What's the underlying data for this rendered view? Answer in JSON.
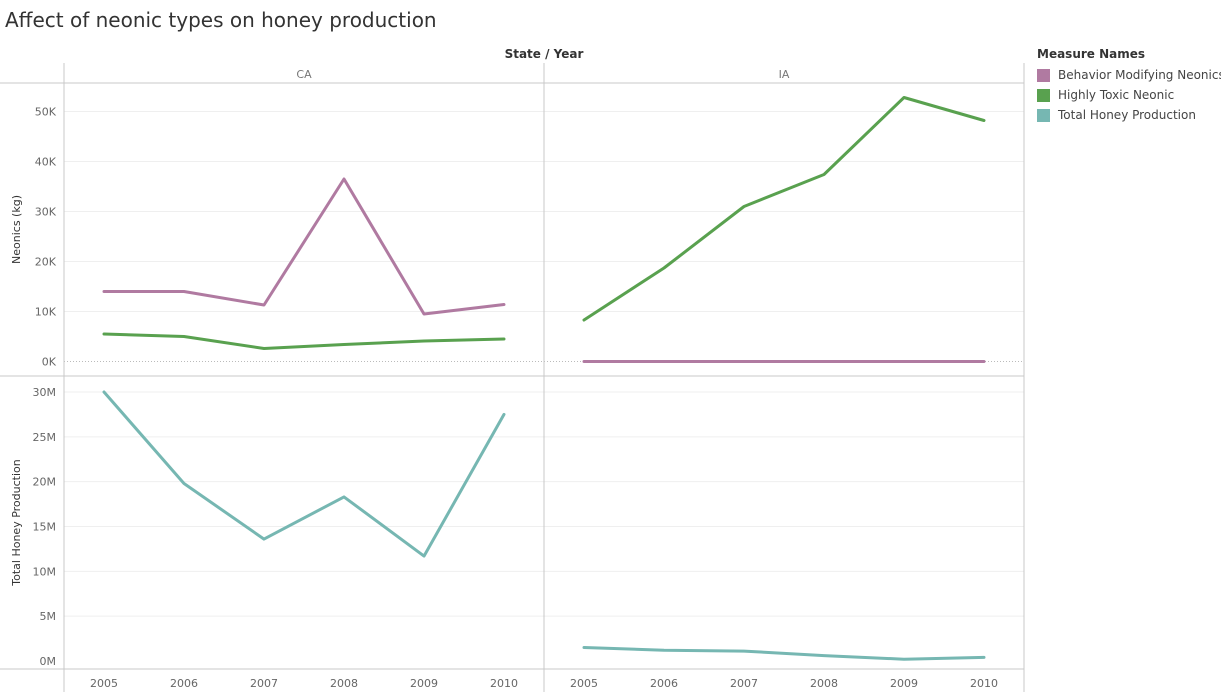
{
  "title": "Affect of neonic types on honey production",
  "chart_data": {
    "type": "line",
    "column_header": "State  /  Year",
    "facets": [
      "CA",
      "IA"
    ],
    "x": [
      "2005",
      "2006",
      "2007",
      "2008",
      "2009",
      "2010"
    ],
    "legend_title": "Measure Names",
    "legend_placement": "right",
    "panels": [
      {
        "ylabel": "Neonics (kg)",
        "ylim": [
          0,
          55000
        ],
        "ticks": [
          {
            "v": 0,
            "label": "0K"
          },
          {
            "v": 10000,
            "label": "10K"
          },
          {
            "v": 20000,
            "label": "20K"
          },
          {
            "v": 30000,
            "label": "30K"
          },
          {
            "v": 40000,
            "label": "40K"
          },
          {
            "v": 50000,
            "label": "50K"
          }
        ],
        "series": [
          {
            "name": "Behavior Modifying Neonics",
            "color": "#b07aa1",
            "values": {
              "CA": [
                14000,
                14000,
                11300,
                36500,
                9500,
                11400
              ],
              "IA": [
                0,
                0,
                0,
                0,
                0,
                0
              ]
            }
          },
          {
            "name": "Highly Toxic Neonic",
            "color": "#59a14f",
            "values": {
              "CA": [
                5500,
                5000,
                2600,
                3400,
                4100,
                4500
              ],
              "IA": [
                8300,
                18700,
                31000,
                37400,
                52800,
                48200
              ]
            }
          }
        ]
      },
      {
        "ylabel": "Total Honey Production",
        "ylim": [
          0,
          31000000
        ],
        "ticks": [
          {
            "v": 0,
            "label": "0M"
          },
          {
            "v": 5000000,
            "label": "5M"
          },
          {
            "v": 10000000,
            "label": "10M"
          },
          {
            "v": 15000000,
            "label": "15M"
          },
          {
            "v": 20000000,
            "label": "20M"
          },
          {
            "v": 25000000,
            "label": "25M"
          },
          {
            "v": 30000000,
            "label": "30M"
          }
        ],
        "series": [
          {
            "name": "Total Honey Production",
            "color": "#76b7b2",
            "values": {
              "CA": [
                30000000,
                19800000,
                13600000,
                18300000,
                11700000,
                27500000
              ],
              "IA": [
                1500000,
                1200000,
                1100000,
                600000,
                200000,
                400000
              ]
            }
          }
        ]
      }
    ],
    "legend": [
      {
        "name": "Behavior Modifying Neonics",
        "color": "#b07aa1"
      },
      {
        "name": "Highly Toxic Neonic",
        "color": "#59a14f"
      },
      {
        "name": "Total Honey Production",
        "color": "#76b7b2"
      }
    ]
  }
}
